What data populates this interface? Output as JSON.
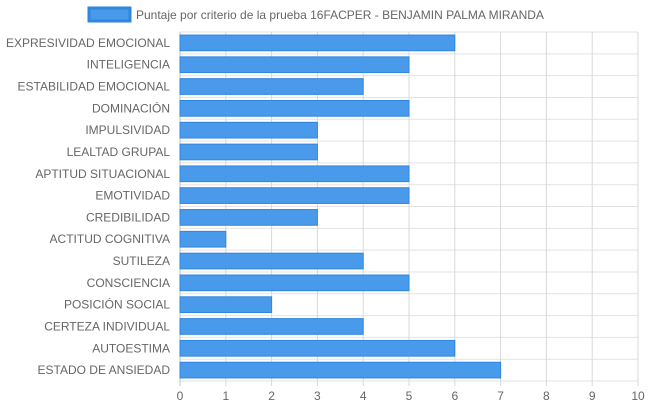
{
  "chart_data": {
    "type": "bar",
    "orientation": "horizontal",
    "categories": [
      "EXPRESIVIDAD EMOCIONAL",
      "INTELIGENCIA",
      "ESTABILIDAD EMOCIONAL",
      "DOMINACIÓN",
      "IMPULSIVIDAD",
      "LEALTAD GRUPAL",
      "APTITUD SITUACIONAL",
      "EMOTIVIDAD",
      "CREDIBILIDAD",
      "ACTITUD COGNITIVA",
      "SUTILEZA",
      "CONSCIENCIA",
      "POSICIÓN SOCIAL",
      "CERTEZA INDIVIDUAL",
      "AUTOESTIMA",
      "ESTADO DE ANSIEDAD"
    ],
    "series": [
      {
        "name": "Puntaje por criterio de la prueba 16FACPER - BENJAMIN PALMA MIRANDA",
        "values": [
          6,
          5,
          4,
          5,
          3,
          3,
          5,
          5,
          3,
          1,
          4,
          5,
          2,
          4,
          6,
          7
        ],
        "color": "#4a9aeb",
        "border_color": "#2f86e0"
      }
    ],
    "x_ticks": [
      "0",
      "1",
      "2",
      "3",
      "4",
      "5",
      "6",
      "7",
      "8",
      "9",
      "10"
    ],
    "xlim": [
      0,
      10
    ],
    "grid": true,
    "legend_position": "top",
    "title": "",
    "xlabel": "",
    "ylabel": ""
  }
}
